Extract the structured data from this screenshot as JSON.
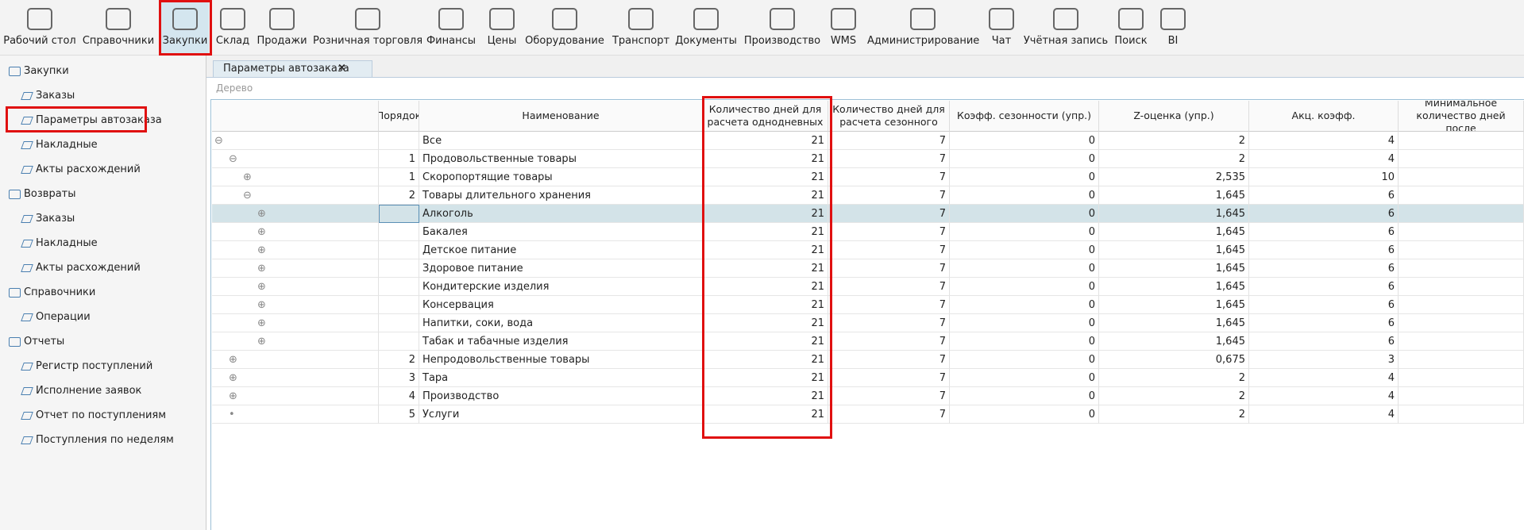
{
  "toolbar": [
    "Рабочий стол",
    "Справочники",
    "Закупки",
    "Склад",
    "Продажи",
    "Розничная торговля",
    "Финансы",
    "Цены",
    "Оборудование",
    "Транспорт",
    "Документы",
    "Производство",
    "WMS",
    "Администрирование",
    "Чат",
    "Учётная запись",
    "Поиск",
    "BI"
  ],
  "sidebar": [
    {
      "title": "Закупки",
      "items": [
        "Заказы",
        "Параметры автозаказа",
        "Накладные",
        "Акты расхождений"
      ]
    },
    {
      "title": "Возвраты",
      "items": [
        "Заказы",
        "Накладные",
        "Акты расхождений"
      ]
    },
    {
      "title": "Справочники",
      "items": [
        "Операции"
      ]
    },
    {
      "title": "Отчеты",
      "items": [
        "Регистр поступлений",
        "Исполнение заявок",
        "Отчет по поступлениям",
        "Поступления по неделям"
      ]
    }
  ],
  "tab": "Параметры автозаказа",
  "tree_label": "Дерево",
  "table": {
    "headers": [
      "Порядок",
      "Наименование",
      "Количество дней для расчета однодневных",
      "Количество дней для расчета сезонного",
      "Коэфф. сезонности (упр.)",
      "Z-оценка (упр.)",
      "Акц. коэфф.",
      "Минимальное количество дней после"
    ],
    "rows": [
      [
        null,
        "Все",
        "21",
        "7",
        "0",
        "2",
        "4"
      ],
      [
        "1",
        "Продовольственные товары",
        "21",
        "7",
        "0",
        "2",
        "4"
      ],
      [
        "1",
        "Скоропортящие товары",
        "21",
        "7",
        "0",
        "2,535",
        "10"
      ],
      [
        "2",
        "Товары длительного хранения",
        "21",
        "7",
        "0",
        "1,645",
        "6"
      ],
      [
        null,
        "Алкоголь",
        "21",
        "7",
        "0",
        "1,645",
        "6"
      ],
      [
        null,
        "Бакалея",
        "21",
        "7",
        "0",
        "1,645",
        "6"
      ],
      [
        null,
        "Детское питание",
        "21",
        "7",
        "0",
        "1,645",
        "6"
      ],
      [
        null,
        "Здоровое питание",
        "21",
        "7",
        "0",
        "1,645",
        "6"
      ],
      [
        null,
        "Кондитерские изделия",
        "21",
        "7",
        "0",
        "1,645",
        "6"
      ],
      [
        null,
        "Консервация",
        "21",
        "7",
        "0",
        "1,645",
        "6"
      ],
      [
        null,
        "Напитки, соки, вода",
        "21",
        "7",
        "0",
        "1,645",
        "6"
      ],
      [
        null,
        "Табак и табачные изделия",
        "21",
        "7",
        "0",
        "1,645",
        "6"
      ],
      [
        "2",
        "Непродовольственные товары",
        "21",
        "7",
        "0",
        "0,675",
        "3"
      ],
      [
        "3",
        "Тара",
        "21",
        "7",
        "0",
        "2",
        "4"
      ],
      [
        "4",
        "Производство",
        "21",
        "7",
        "0",
        "2",
        "4"
      ],
      [
        "5",
        "Услуги",
        "21",
        "7",
        "0",
        "2",
        "4"
      ]
    ]
  }
}
